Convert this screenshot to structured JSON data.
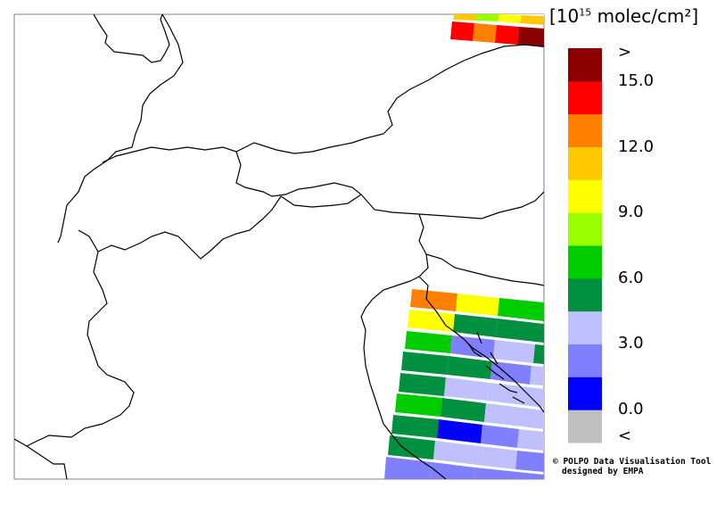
{
  "colorbar": {
    "unit_prefix": "[10",
    "unit_exp": "15",
    "unit_suffix": " molec/cm²]",
    "colors": [
      "#c0c0c0",
      "#0000ff",
      "#8080ff",
      "#c0c0ff",
      "#009040",
      "#00cc00",
      "#99ff00",
      "#ffff00",
      "#ffc800",
      "#ff8000",
      "#ff0000",
      "#8b0000"
    ],
    "labels": [
      ">",
      "15.0",
      "12.0",
      "9.0",
      "6.0",
      "3.0",
      "0.0",
      "<"
    ]
  },
  "credits": {
    "line1": "© POLPO Data Visualisation Tool",
    "line2": "designed by EMPA"
  }
}
